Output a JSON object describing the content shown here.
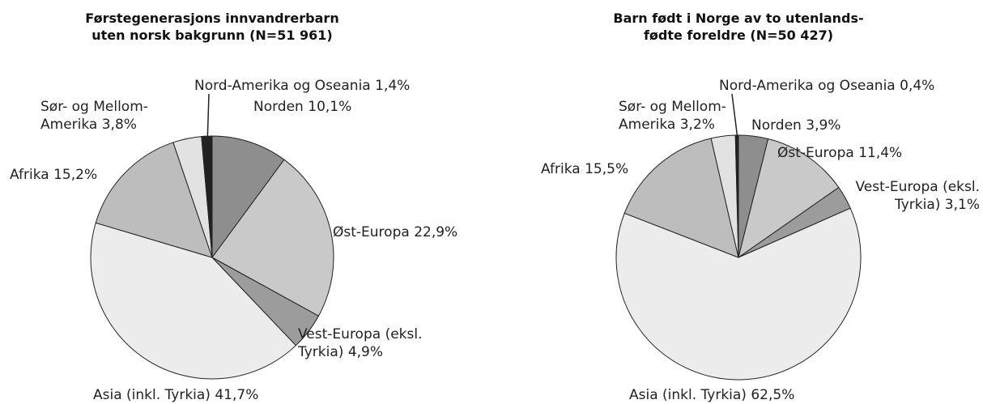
{
  "chart_data": [
    {
      "type": "pie",
      "title": "Førstegenerasjons innvandrerbarn uten norsk bakgrunn (N=51 961)",
      "categories": [
        "Norden",
        "Øst-Europa",
        "Vest-Europa (eksl. Tyrkia)",
        "Asia (inkl. Tyrkia)",
        "Afrika",
        "Sør- og Mellom-Amerika",
        "Nord-Amerika og Oseania"
      ],
      "values": [
        10.1,
        22.9,
        4.9,
        41.7,
        15.2,
        3.8,
        1.4
      ],
      "value_labels": [
        "10,1%",
        "22,9%",
        "4,9%",
        "41,7%",
        "15,2%",
        "3,8%",
        "1,4%"
      ],
      "colors": [
        "#8e8e8e",
        "#c9c9c9",
        "#9c9c9c",
        "#ececec",
        "#bdbdbd",
        "#e2e2e2",
        "#222222"
      ]
    },
    {
      "type": "pie",
      "title": "Barn født i Norge av to utenlands-fødte foreldre (N=50 427)",
      "categories": [
        "Norden",
        "Øst-Europa",
        "Vest-Europa (eksl. Tyrkia)",
        "Asia (inkl. Tyrkia)",
        "Afrika",
        "Sør- og Mellom-Amerika",
        "Nord-Amerika og Oseania"
      ],
      "values": [
        3.9,
        11.4,
        3.1,
        62.5,
        15.5,
        3.2,
        0.4
      ],
      "value_labels": [
        "3,9%",
        "11,4%",
        "3,1%",
        "62,5%",
        "15,5%",
        "3,2%",
        "0,4%"
      ],
      "colors": [
        "#8e8e8e",
        "#c9c9c9",
        "#9c9c9c",
        "#ececec",
        "#bdbdbd",
        "#e2e2e2",
        "#222222"
      ]
    }
  ]
}
